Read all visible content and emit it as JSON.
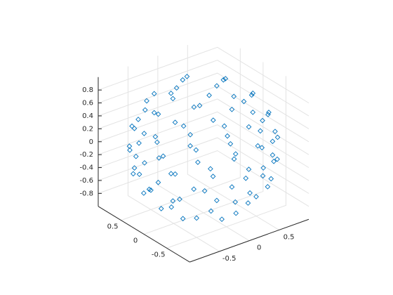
{
  "chart_data": {
    "type": "scatter3",
    "color": "#0072bd",
    "marker": "diamond",
    "grid": true,
    "view": [
      -37.5,
      30
    ],
    "xlim": [
      -1,
      1
    ],
    "ylim": [
      -1,
      1
    ],
    "zlim": [
      -1,
      1
    ],
    "xticks": [
      -0.5,
      0,
      0.5
    ],
    "yticks": [
      -0.5,
      0,
      0.5
    ],
    "zticks": [
      -0.8,
      -0.6,
      -0.4,
      -0.2,
      0,
      0.2,
      0.4,
      0.6,
      0.8
    ],
    "x": [
      0.43,
      0.06,
      -0.4,
      -0.31,
      0.21,
      0.61,
      0.18,
      -0.36,
      -0.69,
      -0.61,
      -0.18,
      0.36,
      0.69,
      0.87,
      0.66,
      0.2,
      -0.34,
      -0.75,
      -0.87,
      -0.66,
      -0.2,
      0.34,
      0.75,
      0.9,
      0.64,
      0.2,
      -0.29,
      -0.71,
      -0.93,
      -0.9,
      -0.64,
      -0.2,
      0.29,
      0.71,
      0.93,
      0.99,
      0.86,
      0.5,
      0,
      -0.5,
      -0.86,
      -0.99,
      -0.86,
      -0.5,
      0,
      0.5,
      0.86,
      0.96,
      0.7,
      0.26,
      -0.26,
      -0.7,
      -0.96,
      -0.96,
      -0.7,
      -0.26,
      0.26,
      0.7,
      0.96,
      0.95,
      0.8,
      0.43,
      -0.05,
      -0.52,
      -0.85,
      -0.95,
      -0.8,
      -0.43,
      0.05,
      0.52,
      0.85,
      0.8,
      0.45,
      -0.08,
      -0.57,
      -0.85,
      -0.8,
      -0.45,
      0.08,
      0.57,
      0.85,
      0.71,
      0.5,
      0,
      -0.5,
      -0.71,
      -0.5,
      0,
      0.5,
      0.28,
      -0.23,
      -0.43,
      -0.03,
      0.41
    ],
    "y": [
      0.08,
      0.44,
      0.19,
      -0.32,
      -0.39,
      0.36,
      0.69,
      0.61,
      0.18,
      -0.36,
      -0.69,
      -0.61,
      -0.18,
      0.08,
      0.57,
      0.85,
      0.8,
      0.45,
      -0.08,
      -0.57,
      -0.85,
      -0.8,
      -0.45,
      0.29,
      0.71,
      0.93,
      0.9,
      0.64,
      0.2,
      -0.29,
      -0.71,
      -0.93,
      -0.9,
      -0.64,
      -0.2,
      0,
      0.5,
      0.86,
      0.99,
      0.86,
      0.5,
      0,
      -0.5,
      -0.86,
      -0.99,
      -0.86,
      -0.5,
      0.26,
      0.7,
      0.96,
      0.96,
      0.7,
      0.26,
      -0.26,
      -0.7,
      -0.96,
      -0.96,
      -0.7,
      -0.26,
      0.05,
      0.52,
      0.85,
      0.95,
      0.8,
      0.43,
      -0.05,
      -0.52,
      -0.85,
      -0.95,
      -0.8,
      -0.43,
      0.34,
      0.75,
      0.87,
      0.66,
      0.2,
      -0.34,
      -0.75,
      -0.87,
      -0.66,
      -0.2,
      0,
      0.5,
      0.71,
      0.5,
      0,
      -0.5,
      -0.71,
      -0.5,
      0.34,
      0.37,
      -0.11,
      -0.44,
      -0.16
    ],
    "z": [
      0.9,
      0.9,
      0.9,
      0.9,
      0.9,
      0.7,
      0.7,
      0.7,
      0.7,
      0.7,
      0.7,
      0.7,
      0.7,
      0.5,
      0.5,
      0.5,
      0.5,
      0.5,
      0.5,
      0.5,
      0.5,
      0.5,
      0.5,
      0.3,
      0.3,
      0.3,
      0.3,
      0.3,
      0.3,
      0.3,
      0.3,
      0.3,
      0.3,
      0.3,
      0.3,
      0.1,
      0.1,
      0.1,
      0.1,
      0.1,
      0.1,
      0.1,
      0.1,
      0.1,
      0.1,
      0.1,
      0.1,
      -0.1,
      -0.1,
      -0.1,
      -0.1,
      -0.1,
      -0.1,
      -0.1,
      -0.1,
      -0.1,
      -0.1,
      -0.1,
      -0.1,
      -0.3,
      -0.3,
      -0.3,
      -0.3,
      -0.3,
      -0.3,
      -0.3,
      -0.3,
      -0.3,
      -0.3,
      -0.3,
      -0.3,
      -0.5,
      -0.5,
      -0.5,
      -0.5,
      -0.5,
      -0.5,
      -0.5,
      -0.5,
      -0.5,
      -0.5,
      -0.7,
      -0.7,
      -0.7,
      -0.7,
      -0.7,
      -0.7,
      -0.7,
      -0.7,
      -0.9,
      -0.9,
      -0.9,
      -0.9,
      -0.9
    ]
  }
}
